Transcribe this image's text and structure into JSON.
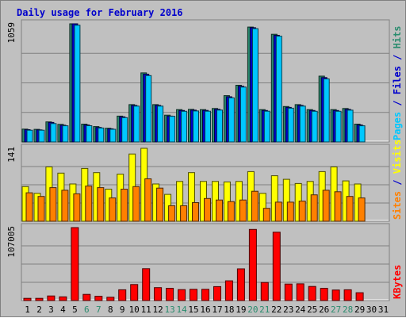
{
  "chart_data": {
    "type": "bar",
    "title": "Daily usage for February 2016",
    "categories": [
      "1",
      "2",
      "3",
      "4",
      "5",
      "6",
      "7",
      "8",
      "9",
      "10",
      "11",
      "12",
      "13",
      "14",
      "15",
      "16",
      "17",
      "18",
      "19",
      "20",
      "21",
      "22",
      "23",
      "24",
      "25",
      "26",
      "27",
      "28",
      "29",
      "30",
      "31"
    ],
    "weekend_days": [
      6,
      7,
      13,
      14,
      20,
      21,
      27,
      28
    ],
    "colors": {
      "pages": "#2a8c6e",
      "files": "#0000cc",
      "hits": "#00c8ff",
      "visits": "#ffff00",
      "sites": "#ff8000",
      "kbytes": "#ff0000",
      "weekend_label": "#2a8c6e",
      "grid": "#808080",
      "plot_bg": "#c0c0c0",
      "title": "#0000cc"
    },
    "panels": [
      {
        "id": "top",
        "ymax": 1059,
        "tick_label": "1059",
        "legend": [
          {
            "text": "Pages",
            "color": "#00c8ff"
          },
          {
            "text": " / ",
            "color": "#0000cc"
          },
          {
            "text": "Files",
            "color": "#0000cc"
          },
          {
            "text": " / ",
            "color": "#0000cc"
          },
          {
            "text": "Hits",
            "color": "#2a8c6e"
          }
        ],
        "series": [
          {
            "name": "Pages",
            "color": "#2a8c6e",
            "values": [
              115,
              113,
              180,
              158,
              1059,
              160,
              138,
              123,
              232,
              335,
              619,
              335,
              240,
              290,
              292,
              290,
              300,
              415,
              508,
              1030,
              290,
              965,
              318,
              335,
              290,
              590,
              290,
              300,
              160,
              0,
              0
            ]
          },
          {
            "name": "Files",
            "color": "#0000cc",
            "values": [
              110,
              108,
              175,
              150,
              1059,
              152,
              130,
              118,
              225,
              328,
              608,
              328,
              232,
              282,
              285,
              283,
              293,
              405,
              500,
              1024,
              282,
              956,
              310,
              328,
              282,
              577,
              282,
              292,
              152,
              0,
              0
            ]
          },
          {
            "name": "Hits",
            "color": "#00c8ff",
            "values": [
              105,
              105,
              165,
              145,
              1046,
              146,
              125,
              114,
              218,
              321,
              595,
              321,
              230,
              275,
              278,
              276,
              286,
              395,
              492,
              1016,
              276,
              948,
              303,
              321,
              275,
              565,
              275,
              285,
              145,
              0,
              0
            ]
          }
        ]
      },
      {
        "id": "middle",
        "ymax": 141,
        "tick_label": "141",
        "legend": [
          {
            "text": "Sites",
            "color": "#ff8000"
          },
          {
            "text": " / ",
            "color": "#0000cc"
          },
          {
            "text": "Visits",
            "color": "#ffff00"
          }
        ],
        "series": [
          {
            "name": "Visits",
            "color": "#ffff00",
            "values": [
              67,
              54,
              105,
              93,
              72,
              102,
              94,
              62,
              91,
              130,
              141,
              72,
              52,
              77,
              94,
              77,
              77,
              76,
              77,
              96,
              54,
              88,
              81,
              73,
              77,
              96,
              105,
              78,
              72,
              0,
              0
            ]
          },
          {
            "name": "Sites",
            "color": "#ff8000",
            "values": [
              55,
              48,
              65,
              60,
              53,
              68,
              65,
              45,
              62,
              67,
              82,
              64,
              30,
              30,
              36,
              44,
              41,
              38,
              41,
              58,
              25,
              37,
              37,
              39,
              51,
              60,
              57,
              48,
              45,
              0,
              0
            ]
          }
        ]
      },
      {
        "id": "bottom",
        "ymax": 107005,
        "tick_label": "107005",
        "legend": [
          {
            "text": "KBytes",
            "color": "#ff0000"
          }
        ],
        "series": [
          {
            "name": "KBytes",
            "color": "#ff0000",
            "values": [
              3300,
              3300,
              6700,
              5500,
              107005,
              9100,
              6300,
              4900,
              15800,
              23500,
              46800,
              19000,
              18000,
              16000,
              16500,
              16500,
              20500,
              29000,
              46500,
              104300,
              26500,
              100300,
              24200,
              24500,
              20700,
              17900,
              15500,
              15800,
              11500,
              0,
              0
            ]
          }
        ]
      }
    ]
  }
}
